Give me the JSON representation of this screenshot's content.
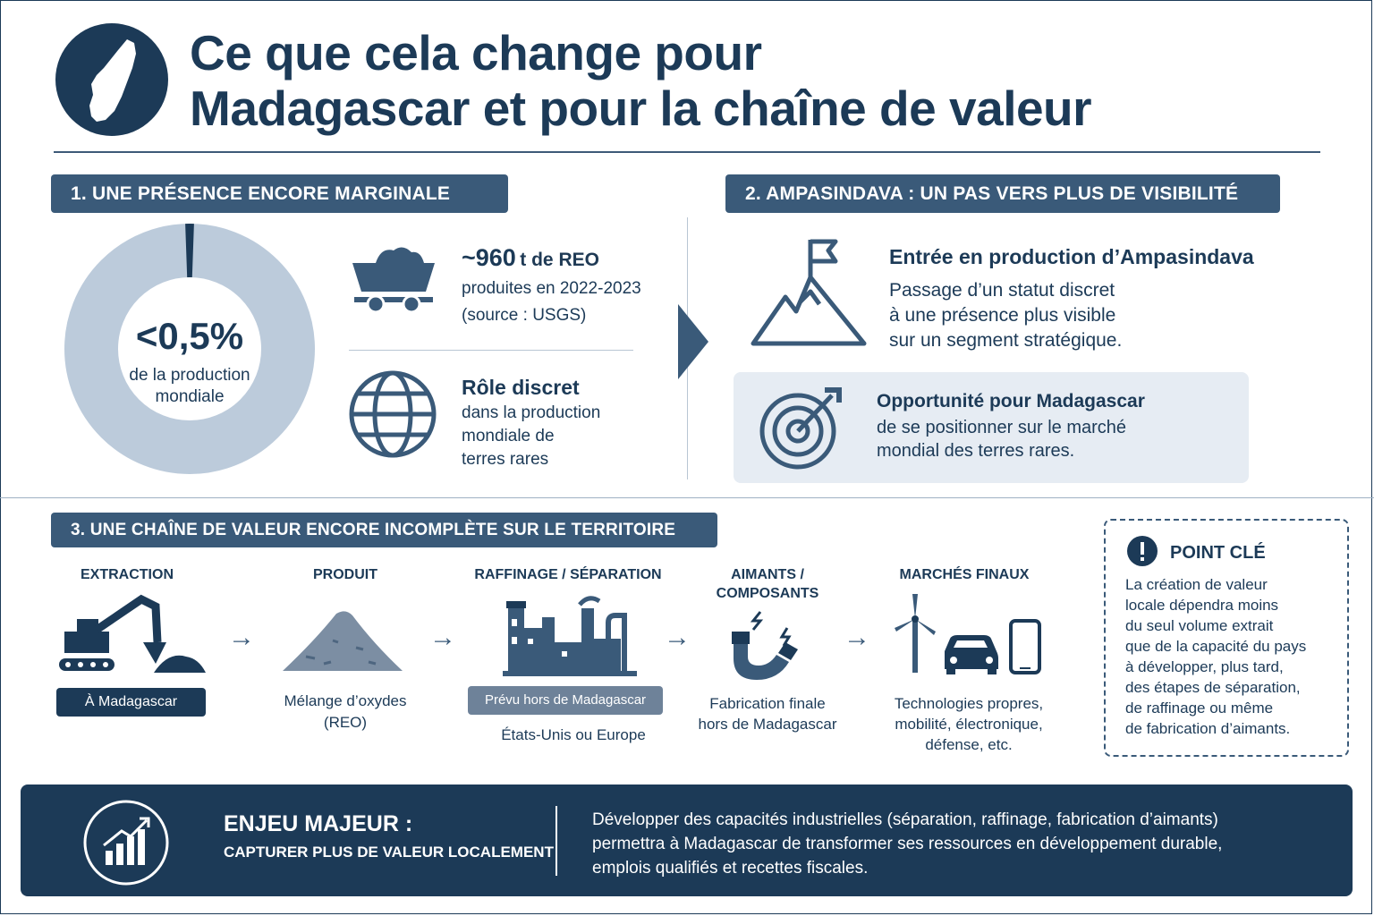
{
  "header": {
    "title_line1": "Ce que cela change pour",
    "title_line2": "Madagascar et pour la chaîne de valeur",
    "logo_icon": "madagascar-map-icon"
  },
  "section1": {
    "label": "1. UNE PRÉSENCE ENCORE MARGINALE",
    "donut": {
      "value_text": "<0,5%",
      "caption": "de la production mondiale",
      "share_fraction": 0.005
    },
    "stat": {
      "value": "~960",
      "unit": "t de REO",
      "line1": "produites en 2022-2023",
      "line2": "(source : USGS)"
    },
    "role": {
      "title": "Rôle discret",
      "line1": "dans la production",
      "line2": "mondiale de",
      "line3": "terres rares"
    }
  },
  "section2": {
    "label": "2. AMPASINDAVA : UN PAS VERS PLUS DE VISIBILITÉ",
    "entry": {
      "title": "Entrée en production d’Ampasindava",
      "line1": "Passage d’un statut discret",
      "line2": "à une présence plus visible",
      "line3": "sur un segment stratégique."
    },
    "opportunity": {
      "title": "Opportunité pour Madagascar",
      "line1": "de se positionner sur le marché",
      "line2": "mondial des terres rares."
    }
  },
  "section3": {
    "label": "3. UNE CHAÎNE DE VALEUR ENCORE INCOMPLÈTE SUR LE TERRITOIRE",
    "steps": [
      {
        "title": "EXTRACTION",
        "tag": "À Madagascar",
        "icon": "excavator-icon"
      },
      {
        "title": "PRODUIT",
        "line1": "Mélange d’oxydes",
        "line2": "(REO)",
        "icon": "ore-pile-icon"
      },
      {
        "title": "RAFFINAGE / SÉPARATION",
        "tag": "Prévu hors de Madagascar",
        "line1": "États-Unis ou Europe",
        "icon": "factory-icon"
      },
      {
        "title_line1": "AIMANTS /",
        "title_line2": "COMPOSANTS",
        "line1": "Fabrication finale",
        "line2": "hors de Madagascar",
        "icon": "magnet-icon"
      },
      {
        "title": "MARCHÉS FINAUX",
        "line1": "Technologies propres,",
        "line2": "mobilité,  électronique,",
        "line3": "défense, etc.",
        "icon": "markets-icon"
      }
    ],
    "arrow": "→"
  },
  "key_point": {
    "title": "POINT CLÉ",
    "lines": [
      "La création de valeur",
      "locale dépendra moins",
      "du seul volume extrait",
      "que de la capacité du pays",
      "à développer, plus tard,",
      "des étapes de séparation,",
      "de raffinage ou même",
      "de fabrication d’aimants."
    ]
  },
  "bottom": {
    "title": "ENJEU MAJEUR :",
    "subtitle": "CAPTURER PLUS DE VALEUR LOCALEMENT",
    "line1": "Développer des capacités industrielles (séparation, raffinage, fabrication d’aimants)",
    "line2": "permettra à Madagascar de transformer ses ressources en développement durable,",
    "line3": "emplois qualifiés et recettes fiscales.",
    "icon": "growth-chart-icon"
  },
  "colors": {
    "navy": "#1c3a57",
    "slate": "#3a5a79",
    "donut_light": "#bccbdb",
    "box_light": "#e6ecf3"
  }
}
